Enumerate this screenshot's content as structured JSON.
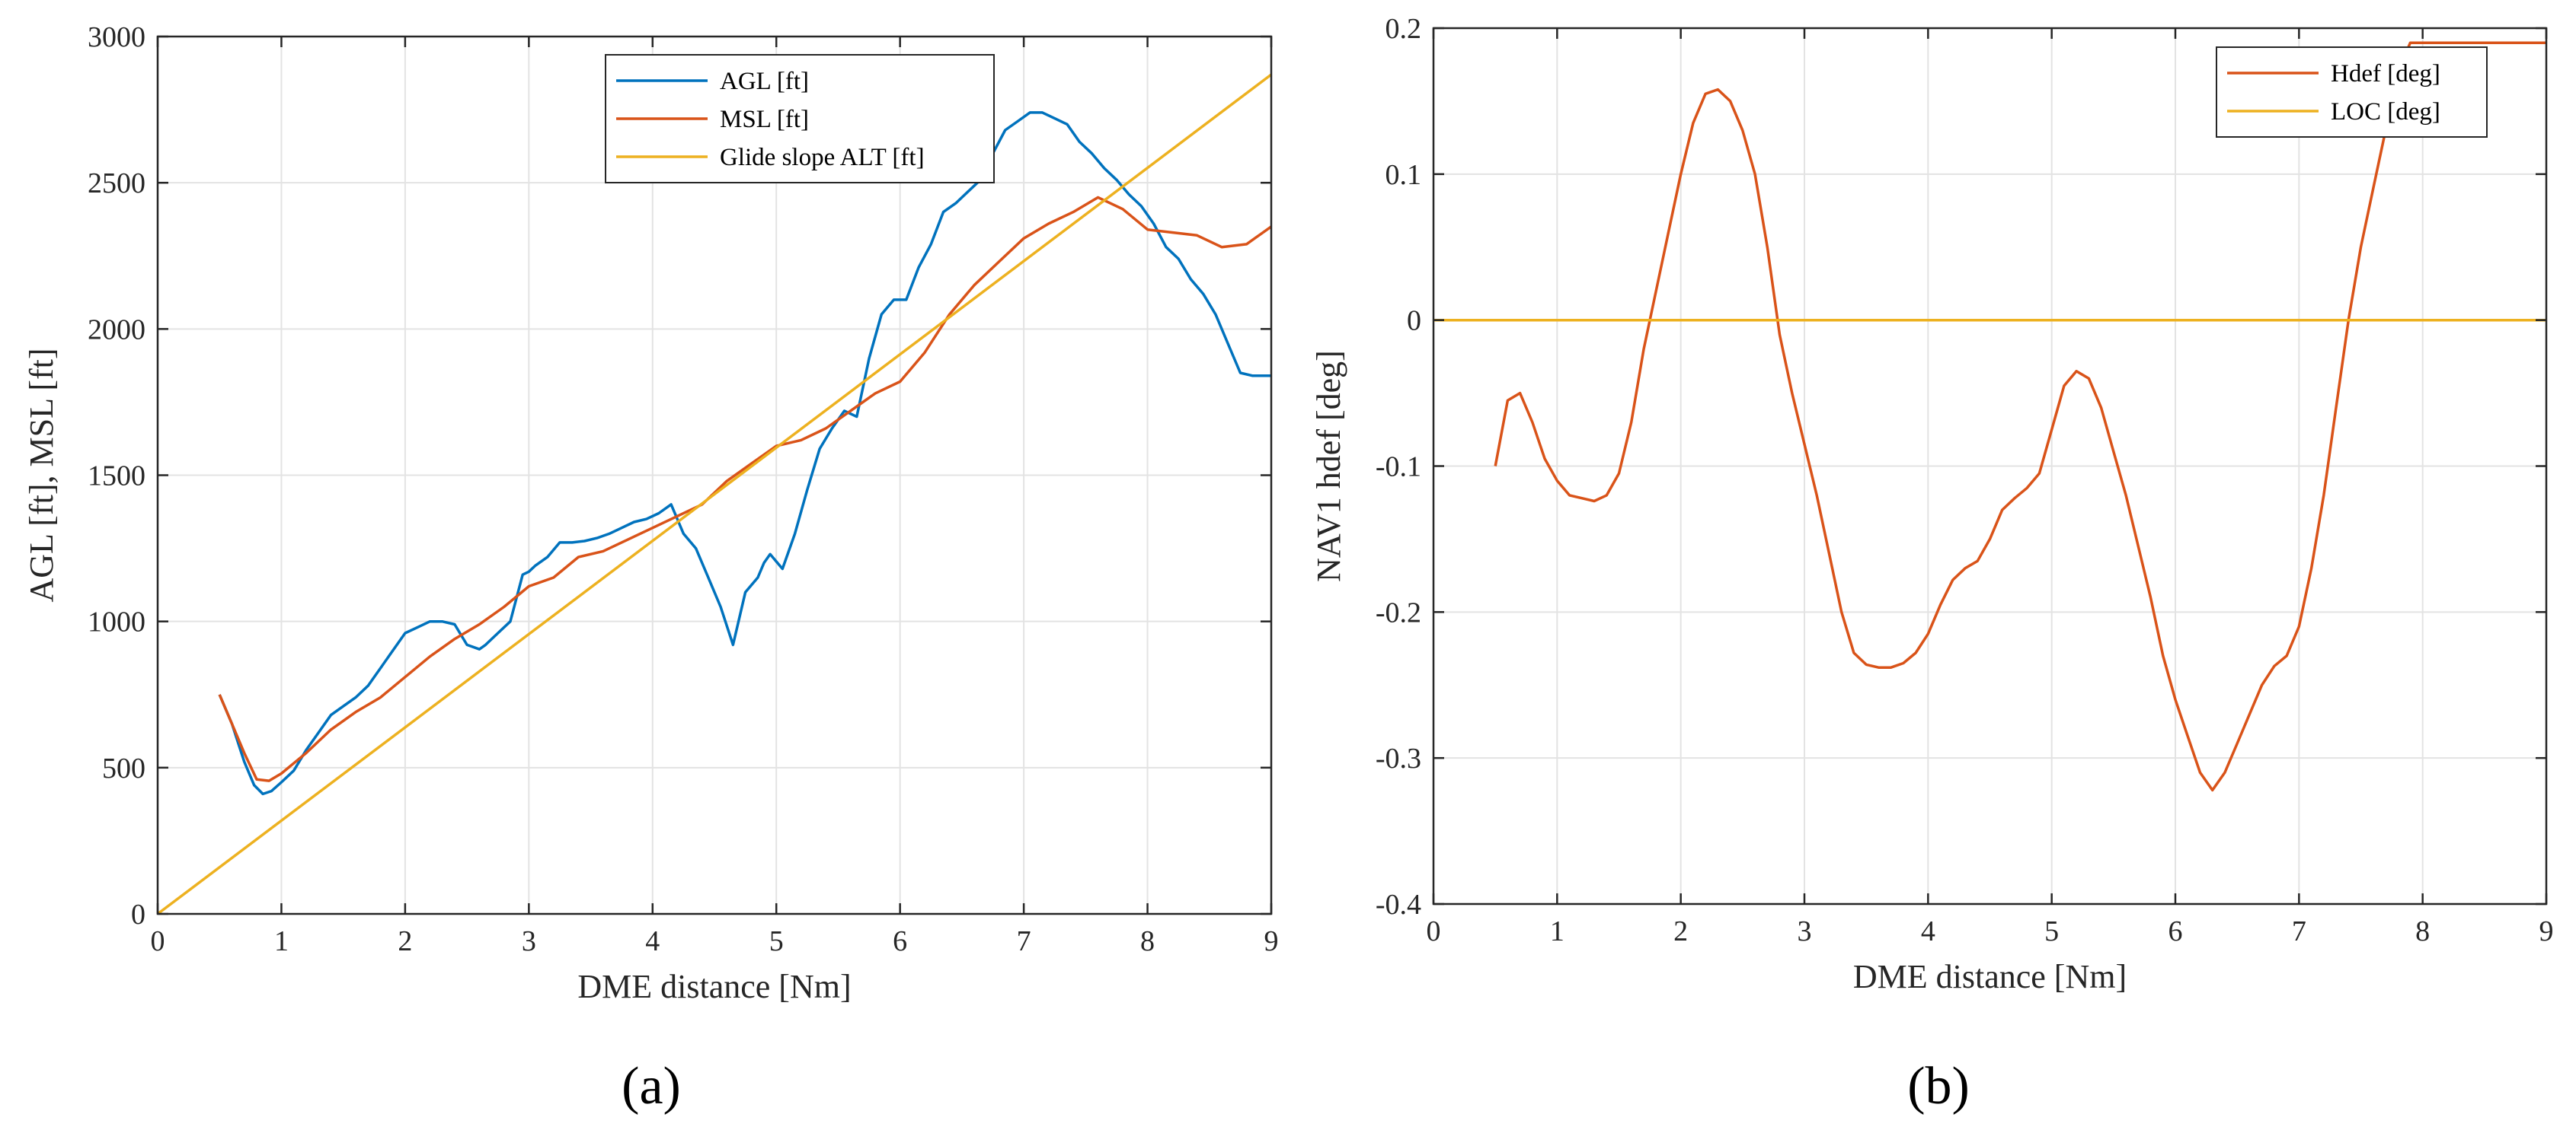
{
  "chart_data": [
    {
      "type": "line",
      "panel_label": "(a)",
      "xlabel": "DME distance [Nm]",
      "ylabel": "AGL [ft], MSL [ft]",
      "xlim": [
        0,
        9
      ],
      "ylim": [
        0,
        3000
      ],
      "xticks": [
        "0",
        "1",
        "2",
        "3",
        "4",
        "5",
        "6",
        "7",
        "8",
        "9"
      ],
      "yticks": [
        "0",
        "500",
        "1000",
        "1500",
        "2000",
        "2500",
        "3000"
      ],
      "grid": true,
      "legend_position": "top-right",
      "series": [
        {
          "name": "AGL [ft]",
          "color": "#0072BD",
          "x": [
            0.5,
            0.6,
            0.7,
            0.78,
            0.85,
            0.92,
            1.0,
            1.1,
            1.2,
            1.3,
            1.4,
            1.5,
            1.6,
            1.7,
            1.8,
            1.9,
            2.0,
            2.1,
            2.2,
            2.3,
            2.4,
            2.5,
            2.6,
            2.65,
            2.75,
            2.85,
            2.95,
            3.0,
            3.05,
            3.15,
            3.25,
            3.35,
            3.45,
            3.55,
            3.65,
            3.75,
            3.85,
            3.95,
            4.05,
            4.15,
            4.25,
            4.35,
            4.45,
            4.55,
            4.65,
            4.75,
            4.85,
            4.9,
            4.95,
            5.05,
            5.15,
            5.25,
            5.35,
            5.45,
            5.55,
            5.65,
            5.75,
            5.85,
            5.95,
            6.05,
            6.15,
            6.25,
            6.35,
            6.45,
            6.55,
            6.65,
            6.75,
            6.85,
            6.95,
            7.05,
            7.15,
            7.25,
            7.35,
            7.45,
            7.55,
            7.65,
            7.75,
            7.85,
            7.95,
            8.05,
            8.15,
            8.25,
            8.35,
            8.45,
            8.55,
            8.65,
            8.75,
            8.85,
            9.0
          ],
          "y": [
            750,
            650,
            520,
            440,
            410,
            420,
            450,
            490,
            560,
            620,
            680,
            710,
            740,
            780,
            840,
            900,
            960,
            980,
            1000,
            1000,
            990,
            920,
            905,
            920,
            960,
            1000,
            1160,
            1170,
            1190,
            1220,
            1270,
            1270,
            1275,
            1285,
            1300,
            1320,
            1340,
            1350,
            1370,
            1400,
            1300,
            1250,
            1150,
            1050,
            920,
            1100,
            1150,
            1200,
            1230,
            1180,
            1300,
            1450,
            1590,
            1660,
            1720,
            1700,
            1900,
            2050,
            2100,
            2100,
            2210,
            2290,
            2400,
            2430,
            2470,
            2510,
            2600,
            2680,
            2710,
            2740,
            2740,
            2720,
            2700,
            2640,
            2600,
            2550,
            2510,
            2460,
            2420,
            2360,
            2280,
            2240,
            2170,
            2120,
            2050,
            1950,
            1850,
            1840,
            1840
          ],
          "_note_ignore": ""
        },
        {
          "name": "MSL [ft]",
          "color": "#D95319",
          "x": [
            0.5,
            0.6,
            0.7,
            0.8,
            0.9,
            1.0,
            1.2,
            1.4,
            1.6,
            1.8,
            2.0,
            2.2,
            2.4,
            2.6,
            2.8,
            3.0,
            3.2,
            3.4,
            3.6,
            3.8,
            4.0,
            4.2,
            4.4,
            4.6,
            4.8,
            5.0,
            5.2,
            5.4,
            5.6,
            5.8,
            6.0,
            6.2,
            6.4,
            6.6,
            6.8,
            7.0,
            7.2,
            7.4,
            7.6,
            7.8,
            8.0,
            8.2,
            8.4,
            8.6,
            8.8,
            9.0
          ],
          "y": [
            750,
            650,
            550,
            460,
            455,
            480,
            550,
            630,
            690,
            740,
            810,
            880,
            940,
            990,
            1050,
            1120,
            1150,
            1220,
            1240,
            1280,
            1320,
            1360,
            1400,
            1480,
            1540,
            1600,
            1620,
            1660,
            1720,
            1780,
            1820,
            1920,
            2050,
            2150,
            2230,
            2310,
            2360,
            2400,
            2450,
            2410,
            2340,
            2330,
            2320,
            2280,
            2290,
            2350
          ]
        },
        {
          "name": "Glide slope ALT [ft]",
          "color": "#EDB120",
          "x": [
            0,
            9
          ],
          "y": [
            0,
            2870
          ]
        }
      ]
    },
    {
      "type": "line",
      "panel_label": "(b)",
      "xlabel": "DME distance [Nm]",
      "ylabel": "NAV1 hdef [deg]",
      "xlim": [
        0,
        9
      ],
      "ylim": [
        -0.4,
        0.2
      ],
      "xticks": [
        "0",
        "1",
        "2",
        "3",
        "4",
        "5",
        "6",
        "7",
        "8",
        "9"
      ],
      "yticks": [
        "-0.4",
        "-0.3",
        "-0.2",
        "-0.1",
        "0",
        "0.1",
        "0.2"
      ],
      "grid": true,
      "legend_position": "top-right",
      "series": [
        {
          "name": "Hdef [deg]",
          "color": "#D95319",
          "x": [
            0.5,
            0.6,
            0.7,
            0.8,
            0.9,
            1.0,
            1.1,
            1.2,
            1.3,
            1.4,
            1.5,
            1.6,
            1.7,
            1.8,
            1.9,
            2.0,
            2.1,
            2.2,
            2.3,
            2.4,
            2.5,
            2.6,
            2.7,
            2.8,
            2.9,
            3.0,
            3.1,
            3.2,
            3.3,
            3.4,
            3.5,
            3.6,
            3.7,
            3.8,
            3.9,
            4.0,
            4.1,
            4.2,
            4.3,
            4.4,
            4.5,
            4.6,
            4.7,
            4.8,
            4.9,
            5.0,
            5.1,
            5.2,
            5.3,
            5.4,
            5.5,
            5.6,
            5.7,
            5.8,
            5.9,
            6.0,
            6.1,
            6.2,
            6.3,
            6.4,
            6.5,
            6.6,
            6.7,
            6.8,
            6.9,
            7.0,
            7.1,
            7.2,
            7.3,
            7.4,
            7.5,
            7.6,
            7.7,
            7.8,
            7.9,
            8.0,
            8.1,
            8.2,
            8.3,
            8.4,
            8.5,
            8.6,
            8.7,
            8.8,
            8.9,
            9.0
          ],
          "y": [
            -0.1,
            -0.055,
            -0.05,
            -0.07,
            -0.095,
            -0.11,
            -0.12,
            -0.122,
            -0.124,
            -0.12,
            -0.105,
            -0.07,
            -0.02,
            0.02,
            0.06,
            0.1,
            0.135,
            0.155,
            0.158,
            0.15,
            0.13,
            0.1,
            0.05,
            -0.01,
            -0.05,
            -0.085,
            -0.12,
            -0.16,
            -0.2,
            -0.228,
            -0.236,
            -0.238,
            -0.238,
            -0.235,
            -0.228,
            -0.215,
            -0.195,
            -0.178,
            -0.17,
            -0.165,
            -0.15,
            -0.13,
            -0.122,
            -0.115,
            -0.105,
            -0.075,
            -0.045,
            -0.035,
            -0.04,
            -0.06,
            -0.09,
            -0.12,
            -0.155,
            -0.19,
            -0.23,
            -0.26,
            -0.285,
            -0.31,
            -0.322,
            -0.31,
            -0.29,
            -0.27,
            -0.25,
            -0.237,
            -0.23,
            -0.21,
            -0.17,
            -0.12,
            -0.06,
            0.0,
            0.05,
            0.09,
            0.13,
            0.17,
            0.19,
            0.19,
            0.19,
            0.19,
            0.19,
            0.19,
            0.19,
            0.19,
            0.19,
            0.19,
            0.19,
            0.19
          ]
        },
        {
          "name": "LOC [deg]",
          "color": "#EDB120",
          "x": [
            0,
            9
          ],
          "y": [
            0,
            0
          ]
        }
      ]
    }
  ]
}
